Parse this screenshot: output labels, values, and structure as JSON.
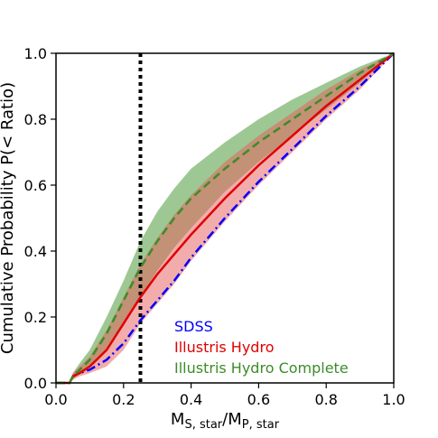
{
  "chart_data": {
    "type": "line",
    "xlabel": "M",
    "xlabel_sub1": "S, star",
    "xlabel_sep": "/M",
    "xlabel_sub2": "P, star",
    "ylabel": "Cumulative Probability P(< Ratio)",
    "xlim": [
      0.0,
      1.0
    ],
    "ylim": [
      0.0,
      1.0
    ],
    "x_ticks": [
      0.0,
      0.2,
      0.4,
      0.6,
      0.8,
      1.0
    ],
    "y_ticks": [
      0.0,
      0.2,
      0.4,
      0.6,
      0.8,
      1.0
    ],
    "x_tick_labels": [
      "0.0",
      "0.2",
      "0.4",
      "0.6",
      "0.8",
      "1.0"
    ],
    "y_tick_labels": [
      "0.0",
      "0.2",
      "0.4",
      "0.6",
      "0.8",
      "1.0"
    ],
    "grid": false,
    "legend_placement": "lower-right",
    "vertical_line": {
      "x": 0.25,
      "style": "dotted",
      "color": "#000000"
    },
    "series": [
      {
        "name": "SDSS",
        "color": "#0000ff",
        "style": "dashdot",
        "x": [
          0.0,
          0.04,
          0.05,
          0.07,
          0.1,
          0.15,
          0.2,
          0.25,
          0.3,
          0.35,
          0.4,
          0.5,
          0.6,
          0.7,
          0.8,
          0.9,
          1.0
        ],
        "y": [
          0.0,
          0.0,
          0.02,
          0.03,
          0.04,
          0.07,
          0.12,
          0.19,
          0.25,
          0.31,
          0.38,
          0.5,
          0.61,
          0.71,
          0.81,
          0.9,
          1.0
        ]
      },
      {
        "name": "Illustris Hydro",
        "color": "#e00000",
        "style": "solid",
        "x": [
          0.0,
          0.04,
          0.05,
          0.07,
          0.1,
          0.15,
          0.2,
          0.25,
          0.3,
          0.35,
          0.4,
          0.5,
          0.6,
          0.7,
          0.8,
          0.9,
          1.0
        ],
        "y": [
          0.0,
          0.0,
          0.02,
          0.03,
          0.05,
          0.1,
          0.18,
          0.26,
          0.33,
          0.39,
          0.45,
          0.56,
          0.66,
          0.75,
          0.84,
          0.92,
          1.0
        ],
        "band_low": [
          0.0,
          0.0,
          0.01,
          0.02,
          0.03,
          0.05,
          0.1,
          0.18,
          0.24,
          0.3,
          0.37,
          0.49,
          0.6,
          0.7,
          0.8,
          0.89,
          1.0
        ],
        "band_high": [
          0.0,
          0.0,
          0.03,
          0.05,
          0.08,
          0.16,
          0.26,
          0.36,
          0.44,
          0.51,
          0.57,
          0.67,
          0.75,
          0.82,
          0.89,
          0.95,
          1.0
        ]
      },
      {
        "name": "Illustris Hydro Complete",
        "color": "#3c8c28",
        "style": "dashed",
        "x": [
          0.0,
          0.04,
          0.05,
          0.07,
          0.1,
          0.15,
          0.2,
          0.25,
          0.3,
          0.35,
          0.4,
          0.5,
          0.6,
          0.7,
          0.8,
          0.9,
          1.0
        ],
        "y": [
          0.0,
          0.0,
          0.02,
          0.04,
          0.07,
          0.15,
          0.25,
          0.35,
          0.43,
          0.5,
          0.56,
          0.65,
          0.73,
          0.8,
          0.87,
          0.94,
          1.0
        ],
        "band_low": [
          0.0,
          0.0,
          0.01,
          0.03,
          0.05,
          0.1,
          0.18,
          0.26,
          0.34,
          0.41,
          0.47,
          0.58,
          0.67,
          0.75,
          0.83,
          0.91,
          1.0
        ],
        "band_high": [
          0.0,
          0.0,
          0.03,
          0.06,
          0.1,
          0.2,
          0.31,
          0.43,
          0.52,
          0.59,
          0.65,
          0.73,
          0.8,
          0.86,
          0.91,
          0.96,
          1.0
        ]
      }
    ]
  }
}
